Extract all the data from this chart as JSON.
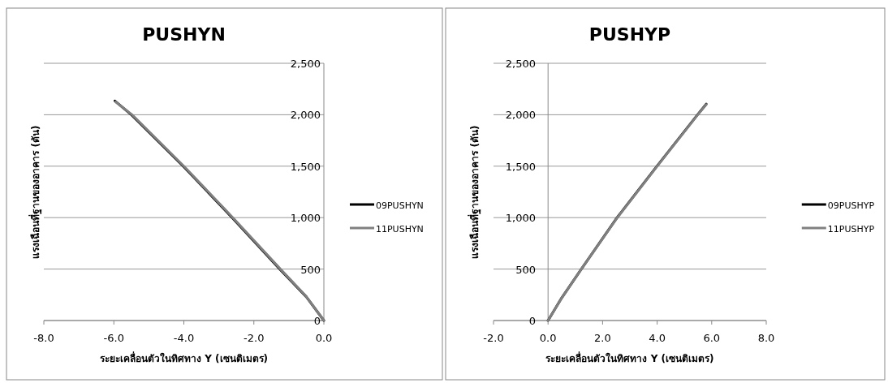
{
  "chart_data": [
    {
      "type": "line",
      "title": "PUSHYN",
      "xlabel": "ระยะเคลื่อนตัวในทิศทาง Y (เซนติเมตร)",
      "ylabel": "แรงเฉือนที่ฐานของอาคาร (ตัน)",
      "xlim": [
        -8,
        0
      ],
      "xticks": [
        {
          "value": -8,
          "label": "-8.0"
        },
        {
          "value": -6,
          "label": "-6.0"
        },
        {
          "value": -4,
          "label": "-4.0"
        },
        {
          "value": -2,
          "label": "-2.0"
        },
        {
          "value": 0,
          "label": "0.0"
        }
      ],
      "ylim": [
        0,
        2500
      ],
      "yticks": [
        {
          "value": 0,
          "label": "0"
        },
        {
          "value": 500,
          "label": "500"
        },
        {
          "value": 1000,
          "label": "1,000"
        },
        {
          "value": 1500,
          "label": "1,500"
        },
        {
          "value": 2000,
          "label": "2,000"
        },
        {
          "value": 2500,
          "label": "2,500"
        }
      ],
      "grid": "y",
      "legend": "right",
      "marker": "none",
      "line_style": "solid",
      "series": [
        {
          "name": "09PUSHYN",
          "color": "#000000",
          "x": [
            0,
            -0.5,
            -1.26,
            -2.62,
            -4.02,
            -5.5,
            -5.97
          ],
          "values": [
            0,
            230,
            500,
            1000,
            1500,
            2000,
            2135
          ]
        },
        {
          "name": "11PUSHYN",
          "color": "#808080",
          "x": [
            0,
            -0.5,
            -1.24,
            -2.6,
            -4.0,
            -5.48,
            -5.95
          ],
          "values": [
            0,
            232,
            500,
            1000,
            1500,
            2000,
            2125
          ]
        }
      ]
    },
    {
      "type": "line",
      "title": "PUSHYP",
      "xlabel": "ระยะเคลื่อนตัวในทิศทาง Y (เซนติเมตร)",
      "ylabel": "แรงเฉือนที่ฐานของอาคาร (ตัน)",
      "xlim": [
        -2,
        8
      ],
      "xticks": [
        {
          "value": -2,
          "label": "-2.0"
        },
        {
          "value": 0,
          "label": "0.0"
        },
        {
          "value": 2,
          "label": "2.0"
        },
        {
          "value": 4,
          "label": "4.0"
        },
        {
          "value": 6,
          "label": "6.0"
        },
        {
          "value": 8,
          "label": "8.0"
        }
      ],
      "ylim": [
        0,
        2500
      ],
      "yticks": [
        {
          "value": 0,
          "label": "0"
        },
        {
          "value": 500,
          "label": "500"
        },
        {
          "value": 1000,
          "label": "1,000"
        },
        {
          "value": 1500,
          "label": "1,500"
        },
        {
          "value": 2000,
          "label": "2,000"
        },
        {
          "value": 2500,
          "label": "2,500"
        }
      ],
      "grid": "y",
      "legend": "right",
      "marker": "none",
      "line_style": "solid",
      "series": [
        {
          "name": "09PUSHYP",
          "color": "#000000",
          "x": [
            0,
            0.5,
            1.22,
            2.53,
            3.99,
            5.48,
            5.8
          ],
          "values": [
            0,
            220,
            500,
            1000,
            1500,
            2000,
            2104
          ]
        },
        {
          "name": "11PUSHYP",
          "color": "#808080",
          "x": [
            0,
            0.5,
            1.22,
            2.54,
            4.0,
            5.49,
            5.8
          ],
          "values": [
            0,
            218,
            500,
            1000,
            1500,
            2000,
            2100
          ]
        }
      ]
    }
  ]
}
